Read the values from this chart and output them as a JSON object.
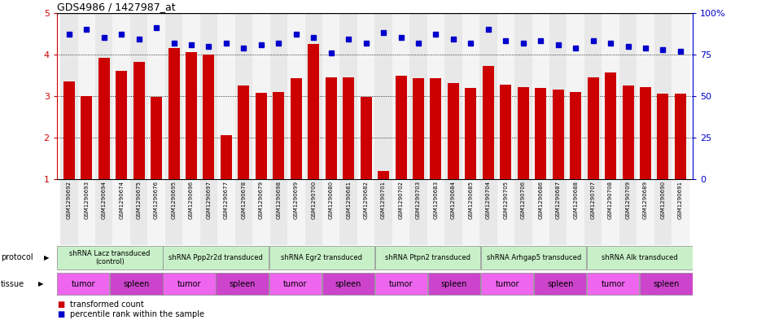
{
  "title": "GDS4986 / 1427987_at",
  "samples": [
    "GSM1290692",
    "GSM1290693",
    "GSM1290694",
    "GSM1290674",
    "GSM1290675",
    "GSM1290676",
    "GSM1290695",
    "GSM1290696",
    "GSM1290697",
    "GSM1290677",
    "GSM1290678",
    "GSM1290679",
    "GSM1290698",
    "GSM1290699",
    "GSM1290700",
    "GSM1290680",
    "GSM1290681",
    "GSM1290682",
    "GSM1290701",
    "GSM1290702",
    "GSM1290703",
    "GSM1290683",
    "GSM1290684",
    "GSM1290685",
    "GSM1290704",
    "GSM1290705",
    "GSM1290706",
    "GSM1290686",
    "GSM1290687",
    "GSM1290688",
    "GSM1290707",
    "GSM1290708",
    "GSM1290709",
    "GSM1290689",
    "GSM1290690",
    "GSM1290691"
  ],
  "bar_values": [
    3.35,
    3.0,
    3.92,
    3.6,
    3.82,
    2.97,
    4.15,
    4.05,
    4.0,
    2.05,
    3.25,
    3.07,
    3.1,
    3.42,
    4.25,
    3.45,
    3.45,
    2.97,
    1.2,
    3.48,
    3.42,
    3.42,
    3.32,
    3.2,
    3.72,
    3.27,
    3.22,
    3.2,
    3.15,
    3.1,
    3.45,
    3.57,
    3.25,
    3.22,
    3.05,
    3.05
  ],
  "blue_pct": [
    87,
    90,
    85,
    87,
    84,
    91,
    82,
    81,
    80,
    82,
    79,
    81,
    82,
    87,
    85,
    76,
    84,
    82,
    88,
    85,
    82,
    87,
    84,
    82,
    90,
    83,
    82,
    83,
    81,
    79,
    83,
    82,
    80,
    79,
    78,
    77
  ],
  "protocols": [
    {
      "label": "shRNA Lacz transduced\n(control)",
      "start": 0,
      "end": 6,
      "color": "#c8f0c8"
    },
    {
      "label": "shRNA Ppp2r2d transduced",
      "start": 6,
      "end": 12,
      "color": "#c8f0c8"
    },
    {
      "label": "shRNA Egr2 transduced",
      "start": 12,
      "end": 18,
      "color": "#c8f0c8"
    },
    {
      "label": "shRNA Ptpn2 transduced",
      "start": 18,
      "end": 24,
      "color": "#c8f0c8"
    },
    {
      "label": "shRNA Arhgap5 transduced",
      "start": 24,
      "end": 30,
      "color": "#c8f0c8"
    },
    {
      "label": "shRNA Alk transduced",
      "start": 30,
      "end": 36,
      "color": "#c8f0c8"
    }
  ],
  "tissues": [
    {
      "label": "tumor",
      "start": 0,
      "end": 3
    },
    {
      "label": "spleen",
      "start": 3,
      "end": 6
    },
    {
      "label": "tumor",
      "start": 6,
      "end": 9
    },
    {
      "label": "spleen",
      "start": 9,
      "end": 12
    },
    {
      "label": "tumor",
      "start": 12,
      "end": 15
    },
    {
      "label": "spleen",
      "start": 15,
      "end": 18
    },
    {
      "label": "tumor",
      "start": 18,
      "end": 21
    },
    {
      "label": "spleen",
      "start": 21,
      "end": 24
    },
    {
      "label": "tumor",
      "start": 24,
      "end": 27
    },
    {
      "label": "spleen",
      "start": 27,
      "end": 30
    },
    {
      "label": "tumor",
      "start": 30,
      "end": 33
    },
    {
      "label": "spleen",
      "start": 33,
      "end": 36
    }
  ],
  "ylim": [
    1,
    5
  ],
  "yticks": [
    1,
    2,
    3,
    4,
    5
  ],
  "y2ticks": [
    0,
    25,
    50,
    75,
    100
  ],
  "y2labels": [
    "0",
    "25",
    "50",
    "75",
    "100%"
  ],
  "bar_color": "#cc0000",
  "blue_color": "#0000cc",
  "tumor_color": "#ee66ee",
  "spleen_color": "#cc44cc",
  "protocol_color": "#c8f0c8",
  "col_even": "#e8e8e8",
  "col_odd": "#f4f4f4"
}
